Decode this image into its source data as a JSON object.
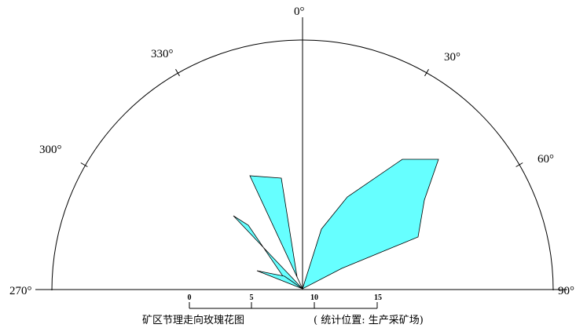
{
  "diagram": {
    "angle_labels": [
      {
        "key": "a270",
        "text": "270°"
      },
      {
        "key": "a300",
        "text": "300°"
      },
      {
        "key": "a330",
        "text": "330°"
      },
      {
        "key": "a0",
        "text": "0°"
      },
      {
        "key": "a30",
        "text": "30°"
      },
      {
        "key": "a60",
        "text": "60°"
      },
      {
        "key": "a90",
        "text": "90°"
      }
    ],
    "scale": {
      "ticks": [
        "0",
        "5",
        "10",
        "15"
      ]
    },
    "caption": {
      "title": "矿区节理走向玫瑰花图",
      "location": "(  统计位置:  生产采矿场)"
    },
    "colors": {
      "petal_fill": "#66ffff",
      "line": "#000000"
    }
  }
}
